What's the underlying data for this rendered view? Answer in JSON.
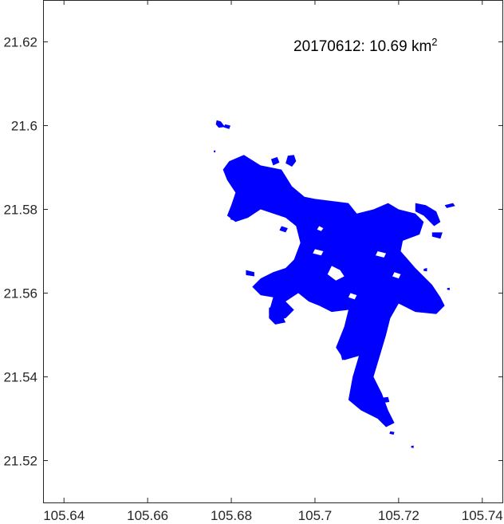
{
  "chart_data": {
    "type": "map",
    "title": "",
    "annotation": {
      "date": "20170612",
      "area_value": "10.69",
      "area_unit": "km",
      "area_unit_exponent": "2",
      "separator": ": "
    },
    "xlabel": "",
    "ylabel": "",
    "xlim": [
      105.635,
      105.745
    ],
    "ylim": [
      21.51,
      21.63
    ],
    "x_ticks": [
      105.64,
      105.66,
      105.68,
      105.7,
      105.72,
      105.74
    ],
    "x_tick_labels": [
      "105.64",
      "105.66",
      "105.68",
      "105.7",
      "105.72",
      "105.74"
    ],
    "y_ticks": [
      21.52,
      21.54,
      21.56,
      21.58,
      21.6,
      21.62
    ],
    "y_tick_labels": [
      "21.52",
      "21.54",
      "21.56",
      "21.58",
      "21.6",
      "21.62"
    ],
    "grid": false,
    "water_color": "#0000ff",
    "water_body": {
      "description_source": "blue water-extent polygon",
      "main_outline_lonlat": [
        [
          105.6795,
          21.5915
        ],
        [
          105.683,
          21.593
        ],
        [
          105.687,
          21.5905
        ],
        [
          105.692,
          21.5895
        ],
        [
          105.6945,
          21.5855
        ],
        [
          105.6975,
          21.583
        ],
        [
          105.7,
          21.5825
        ],
        [
          105.704,
          21.582
        ],
        [
          105.708,
          21.5815
        ],
        [
          105.71,
          21.579
        ],
        [
          105.714,
          21.58
        ],
        [
          105.7175,
          21.5815
        ],
        [
          105.72,
          21.58
        ],
        [
          105.724,
          21.579
        ],
        [
          105.726,
          21.577
        ],
        [
          105.725,
          21.574
        ],
        [
          105.721,
          21.5725
        ],
        [
          105.7205,
          21.57
        ],
        [
          105.724,
          21.566
        ],
        [
          105.728,
          21.562
        ],
        [
          105.73,
          21.559
        ],
        [
          105.731,
          21.557
        ],
        [
          105.729,
          21.555
        ],
        [
          105.724,
          21.5555
        ],
        [
          105.72,
          21.5575
        ],
        [
          105.718,
          21.554
        ],
        [
          105.717,
          21.55
        ],
        [
          105.7155,
          21.545
        ],
        [
          105.714,
          21.54
        ],
        [
          105.716,
          21.536
        ],
        [
          105.7175,
          21.532
        ],
        [
          105.719,
          21.529
        ],
        [
          105.717,
          21.528
        ],
        [
          105.715,
          21.53
        ],
        [
          105.711,
          21.532
        ],
        [
          105.708,
          21.5345
        ],
        [
          105.709,
          21.54
        ],
        [
          105.7105,
          21.545
        ],
        [
          105.707,
          21.544
        ],
        [
          105.705,
          21.547
        ],
        [
          105.707,
          21.552
        ],
        [
          105.708,
          21.556
        ],
        [
          105.704,
          21.5555
        ],
        [
          105.701,
          21.557
        ],
        [
          105.6985,
          21.558
        ],
        [
          105.696,
          21.56
        ],
        [
          105.693,
          21.558
        ],
        [
          105.695,
          21.556
        ],
        [
          105.693,
          21.554
        ],
        [
          105.69,
          21.5535
        ],
        [
          105.689,
          21.5555
        ],
        [
          105.69,
          21.559
        ],
        [
          105.687,
          21.5595
        ],
        [
          105.685,
          21.5615
        ],
        [
          105.687,
          21.5635
        ],
        [
          105.69,
          21.565
        ],
        [
          105.693,
          21.566
        ],
        [
          105.695,
          21.568
        ],
        [
          105.6965,
          21.572
        ],
        [
          105.6955,
          21.576
        ],
        [
          105.693,
          21.578
        ],
        [
          105.69,
          21.579
        ],
        [
          105.687,
          21.58
        ],
        [
          105.684,
          21.578
        ],
        [
          105.681,
          21.577
        ],
        [
          105.679,
          21.5785
        ],
        [
          105.68,
          21.581
        ],
        [
          105.681,
          21.584
        ],
        [
          105.679,
          21.587
        ],
        [
          105.678,
          21.5895
        ]
      ],
      "islands_lonlat": [
        [
          [
            105.704,
            21.5665
          ],
          [
            105.706,
            21.5655
          ],
          [
            105.707,
            21.564
          ],
          [
            105.705,
            21.563
          ],
          [
            105.703,
            21.5645
          ]
        ],
        [
          [
            105.7,
            21.5705
          ],
          [
            105.702,
            21.57
          ],
          [
            105.7015,
            21.569
          ],
          [
            105.6995,
            21.5695
          ]
        ],
        [
          [
            105.7085,
            21.56
          ],
          [
            105.71,
            21.5595
          ],
          [
            105.7095,
            21.5585
          ],
          [
            105.708,
            21.559
          ]
        ],
        [
          [
            105.715,
            21.57
          ],
          [
            105.717,
            21.5695
          ],
          [
            105.7165,
            21.5685
          ],
          [
            105.7145,
            21.569
          ]
        ],
        [
          [
            105.719,
            21.565
          ],
          [
            105.7205,
            21.5645
          ],
          [
            105.72,
            21.5635
          ],
          [
            105.7185,
            21.564
          ]
        ],
        [
          [
            105.692,
            21.576
          ],
          [
            105.6935,
            21.5755
          ],
          [
            105.693,
            21.5745
          ],
          [
            105.6915,
            21.575
          ]
        ],
        [
          [
            105.701,
            21.576
          ],
          [
            105.702,
            21.5755
          ],
          [
            105.7015,
            21.5748
          ],
          [
            105.7005,
            21.5752
          ]
        ]
      ],
      "patches_lonlat": [
        [
          [
            105.6765,
            21.6013
          ],
          [
            105.6775,
            21.601
          ],
          [
            105.6785,
            21.5997
          ],
          [
            105.677,
            21.5995
          ],
          [
            105.6763,
            21.6003
          ]
        ],
        [
          [
            105.6785,
            21.6003
          ],
          [
            105.6798,
            21.6
          ],
          [
            105.6795,
            21.5992
          ],
          [
            105.6782,
            21.5996
          ]
        ],
        [
          [
            105.6895,
            21.592
          ],
          [
            105.691,
            21.5925
          ],
          [
            105.6915,
            21.5912
          ],
          [
            105.69,
            21.5905
          ]
        ],
        [
          [
            105.6935,
            21.5928
          ],
          [
            105.695,
            21.593
          ],
          [
            105.6955,
            21.5915
          ],
          [
            105.6945,
            21.5902
          ],
          [
            105.693,
            21.591
          ]
        ],
        [
          [
            105.724,
            21.5815
          ],
          [
            105.7265,
            21.581
          ],
          [
            105.729,
            21.5795
          ],
          [
            105.73,
            21.577
          ],
          [
            105.7285,
            21.576
          ],
          [
            105.726,
            21.5785
          ],
          [
            105.724,
            21.5795
          ]
        ],
        [
          [
            105.731,
            21.581
          ],
          [
            105.733,
            21.5815
          ],
          [
            105.7335,
            21.5808
          ],
          [
            105.7315,
            21.5803
          ]
        ],
        [
          [
            105.728,
            21.5745
          ],
          [
            105.7305,
            21.5745
          ],
          [
            105.73,
            21.573
          ],
          [
            105.728,
            21.5735
          ]
        ],
        [
          [
            105.689,
            21.5565
          ],
          [
            105.6905,
            21.557
          ],
          [
            105.691,
            21.556
          ],
          [
            105.6905,
            21.5545
          ],
          [
            105.6925,
            21.554
          ],
          [
            105.693,
            21.553
          ],
          [
            105.6905,
            21.5525
          ],
          [
            105.689,
            21.554
          ]
        ],
        [
          [
            105.6835,
            21.5655
          ],
          [
            105.6855,
            21.565
          ],
          [
            105.6855,
            21.564
          ],
          [
            105.6835,
            21.5643
          ]
        ],
        [
          [
            105.706,
            21.546
          ],
          [
            105.708,
            21.546
          ],
          [
            105.7085,
            21.5445
          ],
          [
            105.7065,
            21.544
          ]
        ],
        [
          [
            105.716,
            21.535
          ],
          [
            105.7175,
            21.5352
          ],
          [
            105.7178,
            21.534
          ],
          [
            105.7162,
            21.5338
          ]
        ],
        [
          [
            105.718,
            21.527
          ],
          [
            105.719,
            21.5268
          ],
          [
            105.7188,
            21.5262
          ],
          [
            105.7178,
            21.5264
          ]
        ],
        [
          [
            105.68,
            21.5785
          ],
          [
            105.6815,
            21.5783
          ],
          [
            105.6812,
            21.5772
          ],
          [
            105.6798,
            21.5776
          ]
        ],
        [
          [
            105.6758,
            21.594
          ],
          [
            105.6762,
            21.5941
          ],
          [
            105.6762,
            21.5936
          ],
          [
            105.6758,
            21.5937
          ]
        ],
        [
          [
            105.723,
            21.5235
          ],
          [
            105.7236,
            21.5236
          ],
          [
            105.7236,
            21.523
          ],
          [
            105.723,
            21.5231
          ]
        ],
        [
          [
            105.7316,
            21.5612
          ],
          [
            105.7322,
            21.5613
          ],
          [
            105.7322,
            21.5607
          ],
          [
            105.7316,
            21.5608
          ]
        ],
        [
          [
            105.726,
            21.5658
          ],
          [
            105.7268,
            21.566
          ],
          [
            105.7268,
            21.5652
          ],
          [
            105.726,
            21.5653
          ]
        ]
      ]
    }
  }
}
